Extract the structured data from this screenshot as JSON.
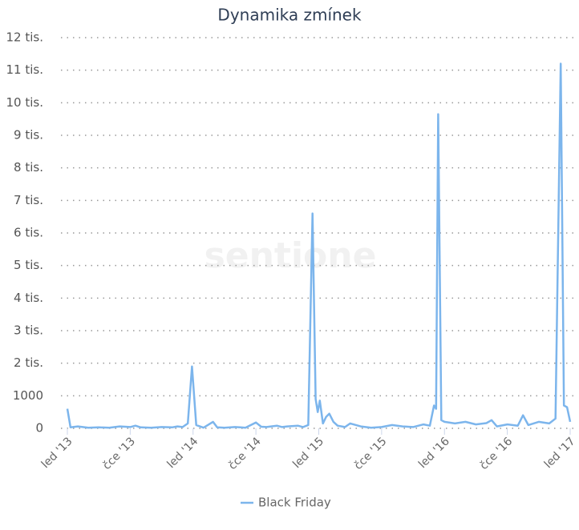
{
  "chart_data": {
    "type": "line",
    "title": "Dynamika zmínek",
    "watermark": "sentione",
    "x": [
      0,
      0.3,
      1,
      2,
      3,
      4,
      5,
      6,
      6.5,
      7,
      8,
      9,
      10,
      10.5,
      11,
      11.5,
      11.9,
      12.3,
      13,
      13.9,
      14.3,
      15,
      16,
      16.5,
      17,
      18,
      18.5,
      19,
      20,
      20.5,
      21,
      22,
      22.5,
      23,
      23.4,
      23.7,
      23.9,
      24.1,
      24.4,
      24.7,
      25,
      25.4,
      25.8,
      26.5,
      27,
      28,
      29,
      30,
      31,
      32,
      33,
      34,
      34.6,
      35,
      35.2,
      35.4,
      35.7,
      36,
      37,
      38,
      39,
      40,
      40.5,
      41,
      42,
      43,
      43.5,
      44,
      45,
      46,
      46.6,
      47.1,
      47.4,
      47.7,
      48
    ],
    "series": [
      {
        "name": "Black Friday",
        "color": "#7cb5ec",
        "values": [
          600,
          30,
          60,
          20,
          30,
          20,
          60,
          40,
          80,
          30,
          20,
          40,
          30,
          60,
          40,
          150,
          1900,
          100,
          20,
          200,
          30,
          20,
          40,
          30,
          20,
          180,
          50,
          40,
          80,
          40,
          60,
          80,
          40,
          100,
          6600,
          900,
          500,
          850,
          150,
          350,
          450,
          200,
          80,
          40,
          150,
          60,
          20,
          40,
          100,
          60,
          40,
          120,
          80,
          700,
          600,
          9650,
          250,
          200,
          150,
          200,
          120,
          160,
          250,
          60,
          120,
          80,
          400,
          100,
          200,
          150,
          300,
          11200,
          700,
          650,
          200
        ]
      }
    ],
    "xlim": [
      0,
      48
    ],
    "xticks": [
      {
        "value": 0,
        "label": "led '13"
      },
      {
        "value": 6,
        "label": "čce '13"
      },
      {
        "value": 12,
        "label": "led '14"
      },
      {
        "value": 18,
        "label": "čce '14"
      },
      {
        "value": 24,
        "label": "led '15"
      },
      {
        "value": 30,
        "label": "čce '15"
      },
      {
        "value": 36,
        "label": "led '16"
      },
      {
        "value": 42,
        "label": "čce '16"
      },
      {
        "value": 48,
        "label": "led '17"
      }
    ],
    "ylim": [
      0,
      12000
    ],
    "yticks": [
      0,
      1000,
      {
        "value": 2000,
        "label": "2 tis."
      },
      {
        "value": 3000,
        "label": "3 tis."
      },
      {
        "value": 4000,
        "label": "4 tis."
      },
      {
        "value": 5000,
        "label": "5 tis."
      },
      {
        "value": 6000,
        "label": "6 tis."
      },
      {
        "value": 7000,
        "label": "7 tis."
      },
      {
        "value": 8000,
        "label": "8 tis."
      },
      {
        "value": 9000,
        "label": "9 tis."
      },
      {
        "value": 10000,
        "label": "10 tis."
      },
      {
        "value": 11000,
        "label": "11 tis."
      },
      {
        "value": 12000,
        "label": "12 tis."
      }
    ],
    "grid": true,
    "legend": "bottom"
  }
}
